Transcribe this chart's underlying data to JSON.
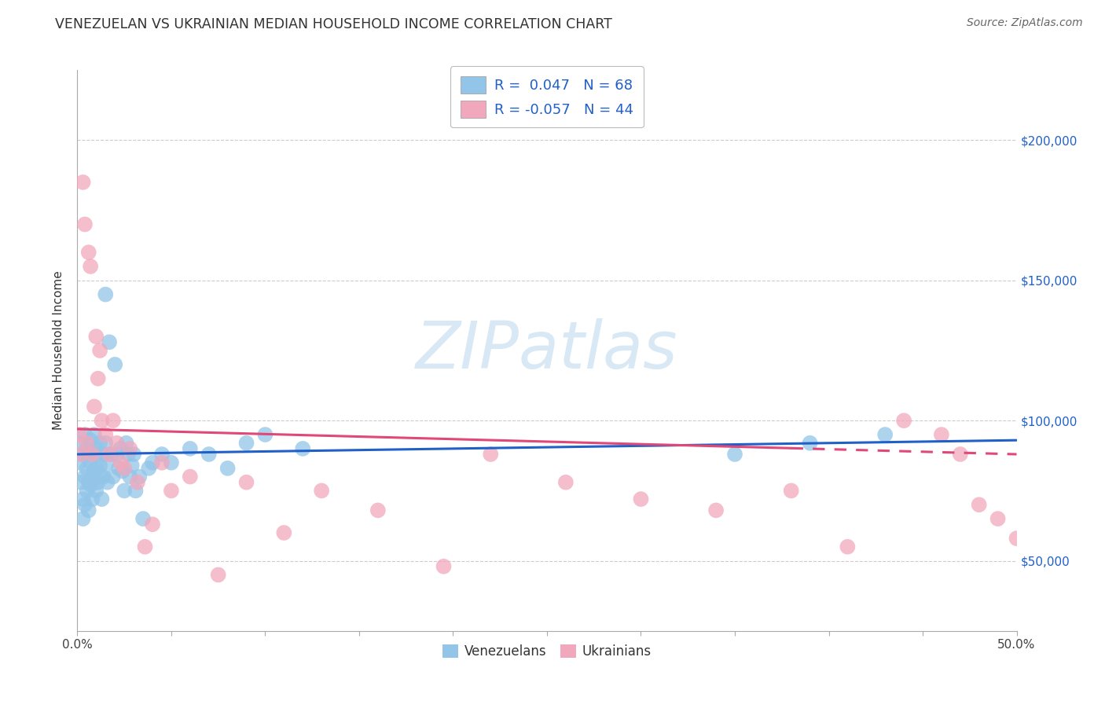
{
  "title": "VENEZUELAN VS UKRAINIAN MEDIAN HOUSEHOLD INCOME CORRELATION CHART",
  "source": "Source: ZipAtlas.com",
  "ylabel": "Median Household Income",
  "yticks": [
    50000,
    100000,
    150000,
    200000
  ],
  "ytick_labels": [
    "$50,000",
    "$100,000",
    "$150,000",
    "$200,000"
  ],
  "xlim": [
    0.0,
    0.5
  ],
  "ylim": [
    25000,
    225000
  ],
  "legend_venezuelans": "Venezuelans",
  "legend_ukrainians": "Ukrainians",
  "r_venezuelan": 0.047,
  "n_venezuelan": 68,
  "r_ukrainian": -0.057,
  "n_ukrainian": 44,
  "blue_color": "#92C5E8",
  "pink_color": "#F2A8BC",
  "blue_line_color": "#2060C8",
  "pink_line_color": "#E04878",
  "title_color": "#333333",
  "axis_label_color": "#333333",
  "source_color": "#666666",
  "legend_text_color": "#2060C8",
  "watermark_color": "#D8E8F5",
  "venezuelan_x": [
    0.001,
    0.002,
    0.002,
    0.003,
    0.003,
    0.003,
    0.004,
    0.004,
    0.004,
    0.005,
    0.005,
    0.005,
    0.006,
    0.006,
    0.006,
    0.007,
    0.007,
    0.007,
    0.008,
    0.008,
    0.008,
    0.009,
    0.009,
    0.01,
    0.01,
    0.01,
    0.011,
    0.011,
    0.012,
    0.012,
    0.013,
    0.013,
    0.014,
    0.014,
    0.015,
    0.015,
    0.016,
    0.016,
    0.017,
    0.018,
    0.019,
    0.02,
    0.021,
    0.022,
    0.023,
    0.024,
    0.025,
    0.026,
    0.027,
    0.028,
    0.029,
    0.03,
    0.031,
    0.033,
    0.035,
    0.038,
    0.04,
    0.045,
    0.05,
    0.06,
    0.07,
    0.08,
    0.09,
    0.1,
    0.12,
    0.35,
    0.39,
    0.43
  ],
  "venezuelan_y": [
    85000,
    92000,
    78000,
    88000,
    72000,
    65000,
    95000,
    80000,
    70000,
    90000,
    83000,
    75000,
    88000,
    78000,
    68000,
    93000,
    85000,
    77000,
    88000,
    80000,
    72000,
    95000,
    82000,
    90000,
    83000,
    75000,
    88000,
    78000,
    84000,
    92000,
    80000,
    72000,
    88000,
    80000,
    145000,
    92000,
    85000,
    78000,
    128000,
    88000,
    80000,
    120000,
    88000,
    83000,
    90000,
    82000,
    75000,
    92000,
    88000,
    80000,
    84000,
    88000,
    75000,
    80000,
    65000,
    83000,
    85000,
    88000,
    85000,
    90000,
    88000,
    83000,
    92000,
    95000,
    90000,
    88000,
    92000,
    95000
  ],
  "ukrainian_x": [
    0.001,
    0.002,
    0.003,
    0.004,
    0.005,
    0.006,
    0.007,
    0.008,
    0.009,
    0.01,
    0.011,
    0.012,
    0.013,
    0.015,
    0.017,
    0.019,
    0.021,
    0.023,
    0.025,
    0.028,
    0.032,
    0.036,
    0.04,
    0.045,
    0.05,
    0.06,
    0.075,
    0.09,
    0.11,
    0.13,
    0.16,
    0.195,
    0.22,
    0.26,
    0.3,
    0.34,
    0.38,
    0.41,
    0.44,
    0.46,
    0.47,
    0.48,
    0.49,
    0.5
  ],
  "ukrainian_y": [
    95000,
    88000,
    185000,
    170000,
    92000,
    160000,
    155000,
    88000,
    105000,
    130000,
    115000,
    125000,
    100000,
    95000,
    88000,
    100000,
    92000,
    85000,
    83000,
    90000,
    78000,
    55000,
    63000,
    85000,
    75000,
    80000,
    45000,
    78000,
    60000,
    75000,
    68000,
    48000,
    88000,
    78000,
    72000,
    68000,
    75000,
    55000,
    100000,
    95000,
    88000,
    70000,
    65000,
    58000
  ]
}
